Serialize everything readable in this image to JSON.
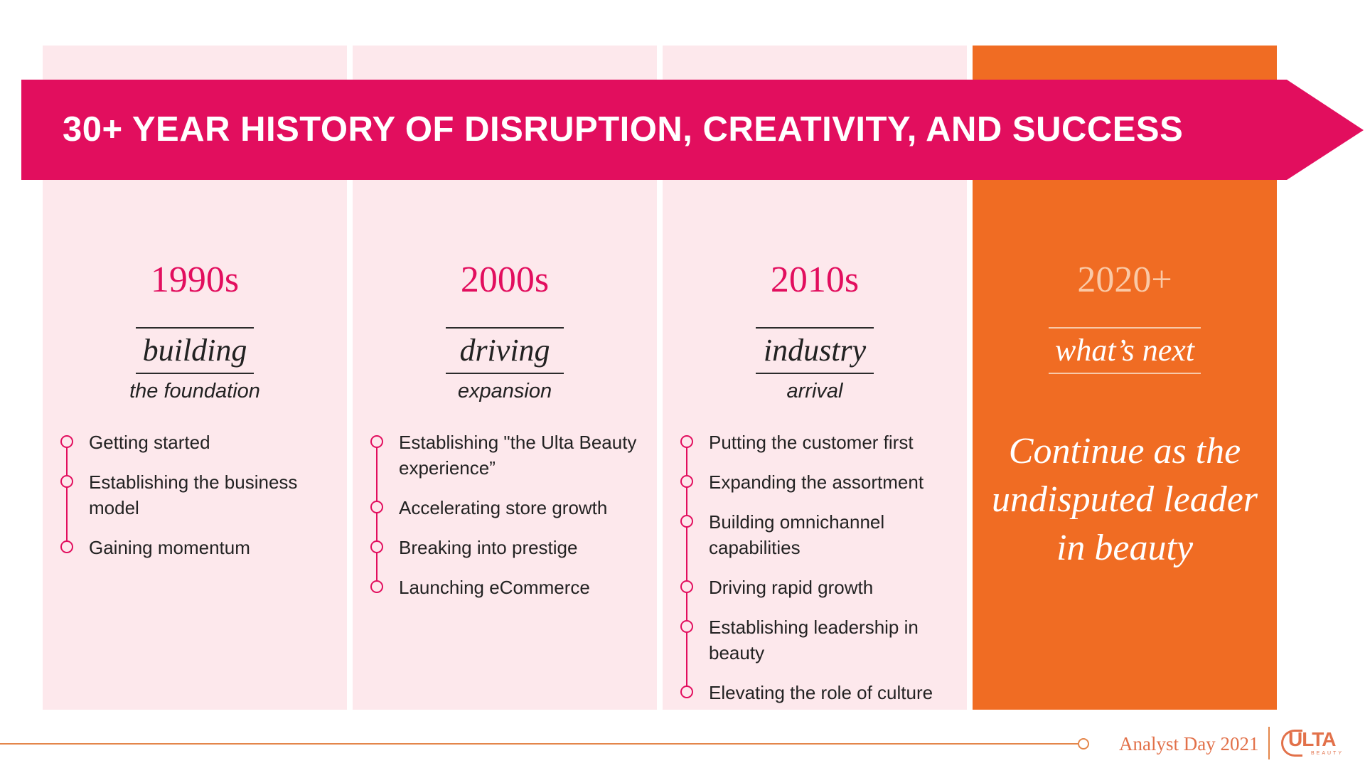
{
  "banner": {
    "title": "30+ YEAR HISTORY OF DISRUPTION, CREATIVITY, AND SUCCESS"
  },
  "columns": [
    {
      "decade": "1990s",
      "theme": "building",
      "subtitle": "the foundation",
      "items": [
        "Getting started",
        "Establishing the business model",
        "Gaining momentum"
      ]
    },
    {
      "decade": "2000s",
      "theme": "driving",
      "subtitle": "expansion",
      "items": [
        "Establishing \"the Ulta Beauty experience”",
        "Accelerating store growth",
        "Breaking into prestige",
        "Launching eCommerce"
      ]
    },
    {
      "decade": "2010s",
      "theme": "industry",
      "subtitle": "arrival",
      "items": [
        "Putting the customer first",
        "Expanding the assortment",
        "Building omnichannel capabilities",
        "Driving rapid growth",
        "Establishing leadership in beauty",
        "Elevating the role of culture"
      ]
    },
    {
      "decade": "2020+",
      "theme": "what’s next",
      "statement": "Continue as the undisputed leader in beauty"
    }
  ],
  "footer": {
    "event": "Analyst Day 2021",
    "logo_word": "ULTA",
    "logo_sub": "BEAUTY"
  },
  "colors": {
    "banner": "#e20e5e",
    "column_bg": "#fde8ec",
    "highlight_column": "#f06c23",
    "accent_orange": "#e2714a"
  }
}
